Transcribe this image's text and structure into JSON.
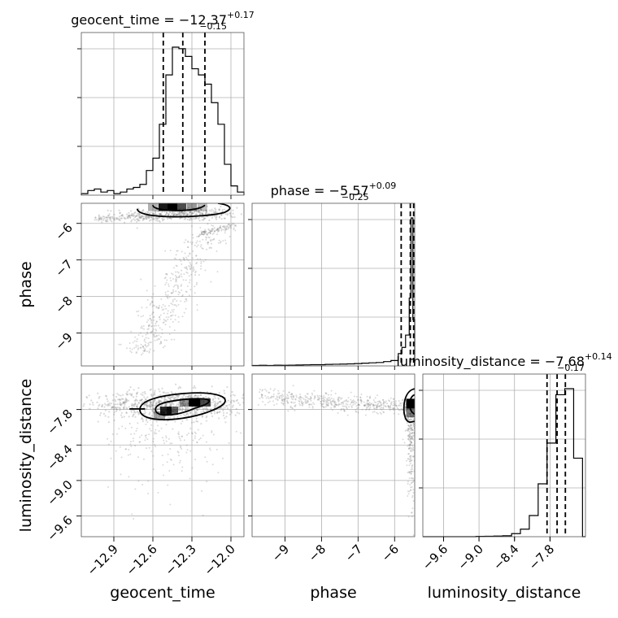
{
  "chart_data": {
    "type": "corner",
    "parameters": [
      {
        "name": "geocent_time",
        "title_prefix": "geocent_time = ",
        "median": "−12.37",
        "plus": "+0.17",
        "minus": "−0.15",
        "range": [
          -13.15,
          -11.9
        ],
        "ticks": [
          -12.9,
          -12.6,
          -12.3,
          -12.0
        ],
        "tick_labels": [
          "−12.9",
          "−12.6",
          "−12.3",
          "−12.0"
        ],
        "quantiles": [
          -12.52,
          -12.37,
          -12.2
        ],
        "hist_bins": [
          -13.15,
          -13.1,
          -13.05,
          -13.0,
          -12.95,
          -12.9,
          -12.85,
          -12.8,
          -12.75,
          -12.7,
          -12.65,
          -12.6,
          -12.55,
          -12.5,
          -12.45,
          -12.4,
          -12.35,
          -12.3,
          -12.25,
          -12.2,
          -12.15,
          -12.1,
          -12.05,
          -12.0,
          -11.95,
          -11.9
        ],
        "hist_counts": [
          0.01,
          0.03,
          0.04,
          0.02,
          0.03,
          0.01,
          0.02,
          0.04,
          0.05,
          0.07,
          0.16,
          0.24,
          0.46,
          0.78,
          0.96,
          0.95,
          0.9,
          0.82,
          0.78,
          0.72,
          0.6,
          0.46,
          0.2,
          0.06,
          0.02
        ]
      },
      {
        "name": "phase",
        "title_prefix": "phase = ",
        "median": "−5.57",
        "plus": "+0.09",
        "minus": "−0.25",
        "range": [
          -9.9,
          -5.45
        ],
        "ticks": [
          -9,
          -8,
          -7,
          -6
        ],
        "tick_labels": [
          "−9",
          "−8",
          "−7",
          "−6"
        ],
        "quantiles": [
          -5.82,
          -5.57,
          -5.48
        ],
        "hist_bins": [
          -9.9,
          -9.7,
          -9.5,
          -9.3,
          -9.1,
          -8.9,
          -8.7,
          -8.5,
          -8.3,
          -8.1,
          -7.9,
          -7.7,
          -7.5,
          -7.3,
          -7.1,
          -6.9,
          -6.7,
          -6.5,
          -6.3,
          -6.1,
          -5.9,
          -5.8,
          -5.7,
          -5.6,
          -5.55,
          -5.5,
          -5.45
        ],
        "hist_counts": [
          0.003,
          0.004,
          0.003,
          0.005,
          0.004,
          0.005,
          0.006,
          0.007,
          0.008,
          0.008,
          0.01,
          0.011,
          0.012,
          0.013,
          0.015,
          0.018,
          0.02,
          0.022,
          0.028,
          0.035,
          0.08,
          0.12,
          0.2,
          0.44,
          0.96,
          0.3
        ]
      },
      {
        "name": "luminosity_distance",
        "title_prefix": "luminosity_distance = ",
        "median": "−7.68",
        "plus": "+0.14",
        "minus": "−0.17",
        "range": [
          -9.95,
          -7.2
        ],
        "ticks": [
          -9.6,
          -9.0,
          -8.4,
          -7.8
        ],
        "tick_labels": [
          "−9.6",
          "−9.0",
          "−8.4",
          "−7.8"
        ],
        "quantiles": [
          -7.85,
          -7.68,
          -7.54
        ],
        "hist_bins": [
          -9.95,
          -9.8,
          -9.65,
          -9.5,
          -9.35,
          -9.2,
          -9.05,
          -8.9,
          -8.75,
          -8.6,
          -8.45,
          -8.3,
          -8.15,
          -8.0,
          -7.85,
          -7.7,
          -7.55,
          -7.4,
          -7.25,
          -7.2
        ],
        "hist_counts": [
          0.0,
          0.0,
          0.0,
          0.0,
          0.0,
          0.0,
          0.002,
          0.003,
          0.004,
          0.006,
          0.02,
          0.05,
          0.14,
          0.35,
          0.62,
          0.94,
          0.98,
          0.52,
          0.0
        ]
      }
    ],
    "grid": true,
    "contour_levels": 2
  }
}
